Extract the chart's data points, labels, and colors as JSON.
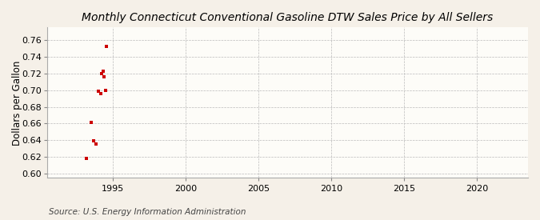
{
  "title": "Monthly Connecticut Conventional Gasoline DTW Sales Price by All Sellers",
  "ylabel": "Dollars per Gallon",
  "source": "Source: U.S. Energy Information Administration",
  "background_color": "#f5f0e8",
  "plot_background_color": "#fdfcf8",
  "xlim": [
    1990.5,
    2023.5
  ],
  "ylim": [
    0.595,
    0.775
  ],
  "yticks": [
    0.6,
    0.62,
    0.64,
    0.66,
    0.68,
    0.7,
    0.72,
    0.74,
    0.76
  ],
  "xticks": [
    1995,
    2000,
    2005,
    2010,
    2015,
    2020
  ],
  "data_x": [
    1993.17,
    1993.5,
    1993.67,
    1993.83,
    1994.0,
    1994.17,
    1994.25,
    1994.33,
    1994.42,
    1994.5,
    1994.58
  ],
  "data_y": [
    0.618,
    0.661,
    0.639,
    0.636,
    0.699,
    0.696,
    0.72,
    0.723,
    0.716,
    0.7,
    0.752
  ],
  "marker_color": "#cc0000",
  "marker_size": 3.5,
  "title_fontsize": 10,
  "label_fontsize": 8.5,
  "tick_fontsize": 8,
  "source_fontsize": 7.5
}
